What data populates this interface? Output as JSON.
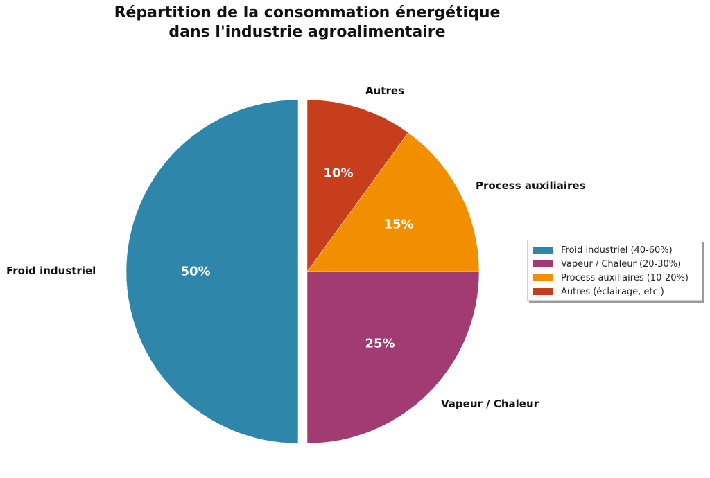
{
  "chart_data": {
    "type": "pie",
    "title": "Répartition de la consommation énergétique dans l'industrie agroalimentaire",
    "title_lines": [
      "Répartition de la consommation énergétique",
      "dans l'industrie agroalimentaire"
    ],
    "categories": [
      "Froid industriel",
      "Vapeur / Chaleur",
      "Process auxiliaires",
      "Autres"
    ],
    "values": [
      50,
      25,
      15,
      10
    ],
    "value_labels": [
      "50%",
      "25%",
      "15%",
      "10%"
    ],
    "colors": [
      "#2E86AB",
      "#A23B72",
      "#F18F01",
      "#C73E1D"
    ],
    "explode": [
      0.05,
      0,
      0,
      0
    ],
    "startangle": 90,
    "legend": {
      "position": "right",
      "entries": [
        "Froid industriel (40-60%)",
        "Vapeur / Chaleur (20-30%)",
        "Process auxiliaires (10-20%)",
        "Autres (éclairage, etc.)"
      ]
    }
  }
}
